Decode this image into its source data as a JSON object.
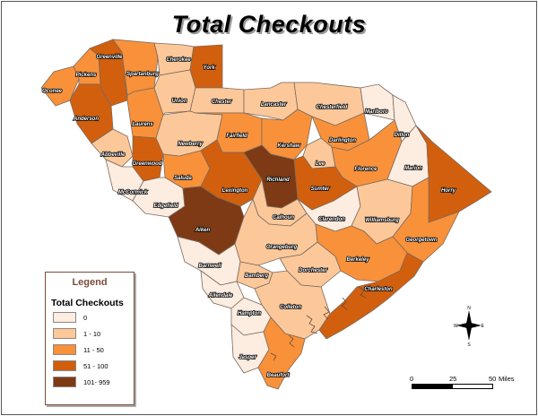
{
  "title": "Total Checkouts",
  "legend": {
    "title": "Legend",
    "subtitle": "Total Checkouts",
    "classes": [
      {
        "label": "0",
        "color": "#fdece0"
      },
      {
        "label": "1 - 10",
        "color": "#fcc89a"
      },
      {
        "label": "11 - 50",
        "color": "#f8913a"
      },
      {
        "label": "51 - 100",
        "color": "#d25f0e"
      },
      {
        "label": "101- 959",
        "color": "#7e3a14"
      }
    ]
  },
  "scale": {
    "ticks": [
      "0",
      "25",
      "50"
    ],
    "unit": "Miles"
  },
  "compass": {
    "n": "N",
    "s": "S",
    "e": "E",
    "w": "W"
  },
  "counties": [
    {
      "name": "Oconee",
      "class": 2
    },
    {
      "name": "Pickens",
      "class": 2
    },
    {
      "name": "Greenville",
      "class": 3
    },
    {
      "name": "Spartanburg",
      "class": 2
    },
    {
      "name": "Cherokee",
      "class": 1
    },
    {
      "name": "York",
      "class": 3
    },
    {
      "name": "Anderson",
      "class": 3
    },
    {
      "name": "Laurens",
      "class": 2
    },
    {
      "name": "Union",
      "class": 1
    },
    {
      "name": "Chester",
      "class": 1
    },
    {
      "name": "Lancaster",
      "class": 1
    },
    {
      "name": "Chesterfield",
      "class": 1
    },
    {
      "name": "Marlboro",
      "class": 0
    },
    {
      "name": "Dillon",
      "class": 0
    },
    {
      "name": "Abbeville",
      "class": 1
    },
    {
      "name": "Greenwood",
      "class": 3
    },
    {
      "name": "Newberry",
      "class": 1
    },
    {
      "name": "Fairfield",
      "class": 2
    },
    {
      "name": "Kershaw",
      "class": 2
    },
    {
      "name": "Darlington",
      "class": 2
    },
    {
      "name": "Lee",
      "class": 1
    },
    {
      "name": "Florence",
      "class": 2
    },
    {
      "name": "Marion",
      "class": 0
    },
    {
      "name": "Horry",
      "class": 3
    },
    {
      "name": "McCormick",
      "class": 0
    },
    {
      "name": "Saluda",
      "class": 2
    },
    {
      "name": "Lexington",
      "class": 3
    },
    {
      "name": "Richland",
      "class": 4
    },
    {
      "name": "Sumter",
      "class": 3
    },
    {
      "name": "Edgefield",
      "class": 0
    },
    {
      "name": "Aiken",
      "class": 4
    },
    {
      "name": "Calhoun",
      "class": 1
    },
    {
      "name": "Clarendon",
      "class": 0
    },
    {
      "name": "Williamsburg",
      "class": 1
    },
    {
      "name": "Georgetown",
      "class": 2
    },
    {
      "name": "Orangeburg",
      "class": 1
    },
    {
      "name": "Barnwell",
      "class": 0
    },
    {
      "name": "Bamberg",
      "class": 1
    },
    {
      "name": "Dorchester",
      "class": 1
    },
    {
      "name": "Berkeley",
      "class": 2
    },
    {
      "name": "Charleston",
      "class": 3
    },
    {
      "name": "Allendale",
      "class": 0
    },
    {
      "name": "Colleton",
      "class": 1
    },
    {
      "name": "Hampton",
      "class": 0
    },
    {
      "name": "Jasper",
      "class": 0
    },
    {
      "name": "Beaufort",
      "class": 2
    }
  ]
}
